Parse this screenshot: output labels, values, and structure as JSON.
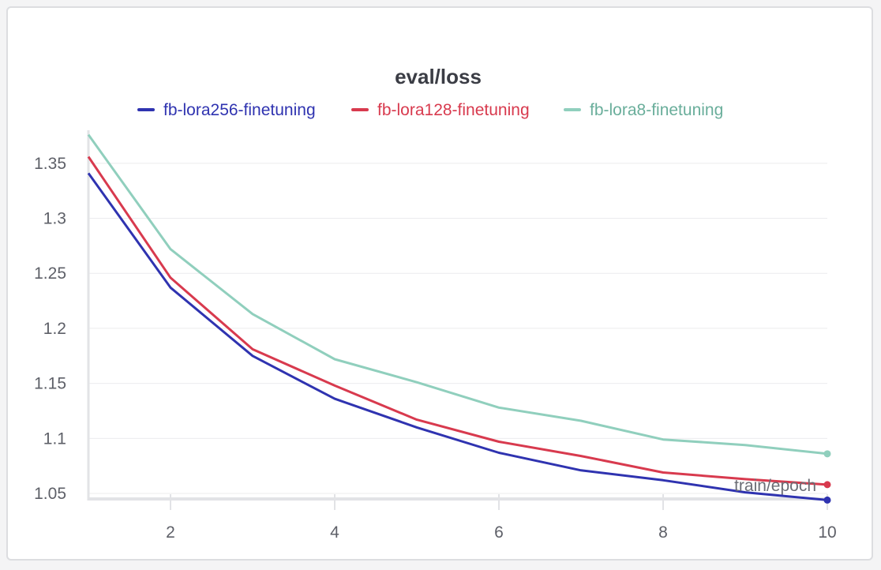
{
  "chart_data": {
    "type": "line",
    "title": "eval/loss",
    "xlabel": "train/epoch",
    "ylabel": "",
    "xlim": [
      1,
      10
    ],
    "ylim": [
      1.045,
      1.38
    ],
    "xticks": [
      2,
      4,
      6,
      8,
      10
    ],
    "yticks": [
      1.05,
      1.1,
      1.15,
      1.2,
      1.25,
      1.3,
      1.35
    ],
    "ytick_labels": [
      "1.05",
      "1.1",
      "1.15",
      "1.2",
      "1.25",
      "1.3",
      "1.35"
    ],
    "grid": true,
    "legend_position": "top",
    "x": [
      1,
      2,
      3,
      4,
      5,
      6,
      7,
      8,
      9,
      10
    ],
    "series": [
      {
        "name": "fb-lora256-finetuning",
        "color": "#2f33b0",
        "values": [
          1.341,
          1.237,
          1.175,
          1.136,
          1.11,
          1.087,
          1.071,
          1.062,
          1.051,
          1.044
        ]
      },
      {
        "name": "fb-lora128-finetuning",
        "color": "#d83a4e",
        "values": [
          1.356,
          1.246,
          1.181,
          1.148,
          1.117,
          1.097,
          1.084,
          1.069,
          1.063,
          1.058
        ]
      },
      {
        "name": "fb-lora8-finetuning",
        "color": "#90cfbd",
        "values": [
          1.376,
          1.272,
          1.213,
          1.172,
          1.151,
          1.128,
          1.116,
          1.099,
          1.094,
          1.086
        ]
      }
    ]
  },
  "legend_text_colors": [
    "#2f33b0",
    "#d83a4e",
    "#6aae9b"
  ]
}
